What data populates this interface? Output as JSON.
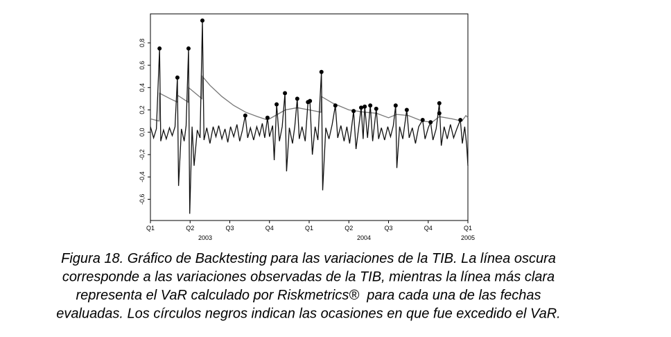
{
  "chart_data": {
    "type": "line",
    "xlim": [
      0,
      8
    ],
    "ylim": [
      -0.79,
      1.06
    ],
    "xticks": [
      {
        "value": 0,
        "label": "Q1"
      },
      {
        "value": 1,
        "label": "Q2"
      },
      {
        "value": 2,
        "label": "Q3"
      },
      {
        "value": 3,
        "label": "Q4"
      },
      {
        "value": 4,
        "label": "Q1"
      },
      {
        "value": 5,
        "label": "Q2"
      },
      {
        "value": 6,
        "label": "Q3"
      },
      {
        "value": 7,
        "label": "Q4"
      },
      {
        "value": 8,
        "label": "Q1"
      }
    ],
    "x_years": [
      {
        "value": 1.38,
        "label": "2003"
      },
      {
        "value": 5.38,
        "label": "2004"
      },
      {
        "value": 8,
        "label": "2005"
      }
    ],
    "yticks": [
      {
        "value": -0.6,
        "label": "-0,6"
      },
      {
        "value": -0.4,
        "label": "-0,4"
      },
      {
        "value": -0.2,
        "label": "-0,2"
      },
      {
        "value": 0,
        "label": "0,0"
      },
      {
        "value": 0.2,
        "label": "0,2"
      },
      {
        "value": 0.4,
        "label": "0,4"
      },
      {
        "value": 0.6,
        "label": "0,6"
      },
      {
        "value": 0.8,
        "label": "0,8"
      }
    ],
    "series": [
      {
        "type": "line",
        "color": "#111111",
        "x": [
          0,
          0.08,
          0.15,
          0.23,
          0.26,
          0.33,
          0.4,
          0.48,
          0.55,
          0.62,
          0.68,
          0.71,
          0.78,
          0.85,
          0.9,
          0.96,
          0.99,
          1.05,
          1.1,
          1.18,
          1.25,
          1.31,
          1.35,
          1.42,
          1.5,
          1.58,
          1.65,
          1.72,
          1.8,
          1.88,
          1.95,
          2.02,
          2.1,
          2.18,
          2.25,
          2.32,
          2.39,
          2.45,
          2.52,
          2.6,
          2.68,
          2.75,
          2.82,
          2.88,
          2.95,
          3.0,
          3.08,
          3.12,
          3.18,
          3.25,
          3.32,
          3.39,
          3.43,
          3.5,
          3.58,
          3.64,
          3.7,
          3.75,
          3.82,
          3.9,
          3.97,
          4.02,
          4.08,
          4.15,
          4.22,
          4.31,
          4.34,
          4.42,
          4.5,
          4.58,
          4.66,
          4.72,
          4.8,
          4.88,
          4.95,
          5.02,
          5.12,
          5.18,
          5.25,
          5.31,
          5.36,
          5.4,
          5.47,
          5.54,
          5.6,
          5.69,
          5.75,
          5.82,
          5.9,
          5.98,
          6.05,
          6.12,
          6.18,
          6.21,
          6.28,
          6.36,
          6.46,
          6.52,
          6.6,
          6.68,
          6.76,
          6.86,
          6.92,
          7.0,
          7.06,
          7.12,
          7.2,
          7.28,
          7.33,
          7.4,
          7.48,
          7.56,
          7.64,
          7.72,
          7.81,
          7.86,
          7.92,
          7.97,
          8.0
        ],
        "values": [
          0.05,
          -0.05,
          0.03,
          0.75,
          -0.08,
          0.02,
          -0.06,
          0.04,
          -0.03,
          0.05,
          0.49,
          -0.48,
          0.03,
          -0.08,
          0.06,
          0.75,
          -0.73,
          0.05,
          -0.3,
          0.02,
          -0.05,
          1.0,
          -0.07,
          0.04,
          -0.1,
          0.05,
          -0.04,
          0.06,
          -0.06,
          0.03,
          -0.09,
          0.05,
          -0.04,
          0.07,
          -0.08,
          0.02,
          0.15,
          -0.05,
          0.04,
          -0.07,
          0.05,
          -0.03,
          0.08,
          -0.05,
          0.13,
          -0.04,
          0.06,
          -0.25,
          0.25,
          -0.08,
          0.05,
          0.35,
          -0.35,
          0.04,
          -0.1,
          0.06,
          0.3,
          -0.06,
          0.05,
          -0.08,
          0.27,
          0.28,
          -0.2,
          0.05,
          -0.07,
          0.54,
          -0.52,
          0.04,
          -0.06,
          0.07,
          0.24,
          -0.05,
          0.06,
          -0.08,
          0.05,
          -0.1,
          0.19,
          -0.15,
          0.05,
          0.22,
          -0.06,
          0.23,
          -0.05,
          0.24,
          -0.08,
          0.21,
          -0.06,
          0.04,
          -0.07,
          0.05,
          -0.04,
          0.06,
          0.24,
          -0.32,
          0.05,
          -0.06,
          0.2,
          -0.05,
          0.04,
          -0.1,
          0.05,
          0.11,
          -0.06,
          0.04,
          0.09,
          -0.07,
          0.03,
          0.26,
          -0.12,
          0.05,
          -0.06,
          0.07,
          -0.05,
          0.03,
          0.11,
          -0.1,
          0.05,
          -0.12,
          -0.3
        ]
      },
      {
        "type": "line",
        "color": "#777777",
        "x": [
          0,
          0.22,
          0.23,
          0.5,
          0.68,
          0.69,
          0.95,
          0.96,
          1.3,
          1.31,
          1.5,
          1.8,
          2.1,
          2.4,
          2.7,
          2.95,
          3.2,
          3.4,
          3.7,
          4.0,
          4.3,
          4.31,
          4.6,
          5.0,
          5.4,
          5.7,
          6.0,
          6.2,
          6.5,
          6.85,
          7.1,
          7.28,
          7.6,
          7.85,
          7.95,
          8.0
        ],
        "values": [
          0.12,
          0.1,
          0.35,
          0.3,
          0.27,
          0.33,
          0.27,
          0.4,
          0.3,
          0.5,
          0.42,
          0.32,
          0.24,
          0.18,
          0.14,
          0.11,
          0.16,
          0.2,
          0.22,
          0.2,
          0.18,
          0.32,
          0.26,
          0.2,
          0.18,
          0.17,
          0.13,
          0.16,
          0.15,
          0.1,
          0.09,
          0.14,
          0.12,
          0.1,
          0.15,
          0.13
        ]
      },
      {
        "type": "scatter",
        "color": "#000000",
        "x": [
          0.23,
          0.68,
          0.96,
          1.31,
          2.39,
          2.95,
          3.18,
          3.39,
          3.7,
          3.97,
          4.02,
          4.31,
          4.66,
          5.12,
          5.31,
          5.4,
          5.54,
          5.69,
          6.18,
          6.46,
          6.86,
          7.06,
          7.28,
          7.28,
          7.81
        ],
        "values": [
          0.75,
          0.49,
          0.75,
          1.0,
          0.15,
          0.13,
          0.25,
          0.35,
          0.3,
          0.27,
          0.28,
          0.54,
          0.24,
          0.19,
          0.22,
          0.23,
          0.24,
          0.21,
          0.24,
          0.2,
          0.11,
          0.09,
          0.26,
          0.17,
          0.11
        ]
      }
    ],
    "caption": [
      "Figura 18. Gráfico de Backtesting para las variaciones de la TIB. La línea oscura",
      "corresponde a las variaciones observadas de la TIB, mientras la línea más clara",
      "representa el VaR calculado por Riskmetrics®  para cada una de las fechas",
      "evaluadas. Los círculos negros indican las ocasiones en que fue excedido el VaR."
    ]
  }
}
